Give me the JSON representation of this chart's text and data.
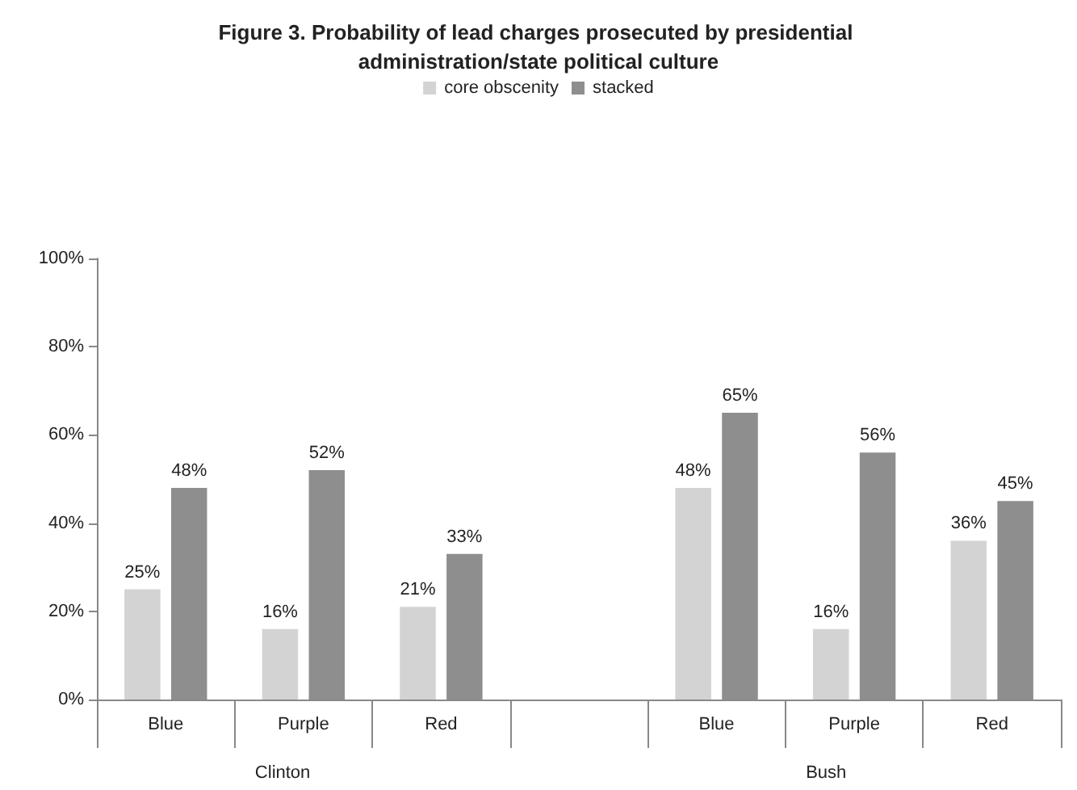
{
  "chart_data": {
    "type": "bar",
    "title": "Figure 3. Probability of lead charges prosecuted by presidential administration/state political culture",
    "categories": [
      "Blue",
      "Purple",
      "Red",
      null,
      "Blue",
      "Purple",
      "Red"
    ],
    "series": [
      {
        "name": "core obscenity",
        "color": "#d3d3d3",
        "values": [
          25,
          16,
          21,
          null,
          48,
          16,
          36
        ],
        "value_labels": [
          "25%",
          "16%",
          "21%",
          null,
          "48%",
          "16%",
          "36%"
        ]
      },
      {
        "name": "stacked",
        "color": "#8e8e8e",
        "values": [
          48,
          52,
          33,
          null,
          65,
          56,
          45
        ],
        "value_labels": [
          "48%",
          "52%",
          "33%",
          null,
          "65%",
          "56%",
          "45%"
        ]
      }
    ],
    "ylim": [
      0,
      100
    ],
    "yticks": [
      {
        "value": 0,
        "label": "0%"
      },
      {
        "value": 20,
        "label": "20%"
      },
      {
        "value": 40,
        "label": "40%"
      },
      {
        "value": 60,
        "label": "60%"
      },
      {
        "value": 80,
        "label": "80%"
      },
      {
        "value": 100,
        "label": "100%"
      }
    ],
    "annotations": [
      "Clinton",
      "Bush"
    ],
    "legend": "top",
    "grid": false
  }
}
